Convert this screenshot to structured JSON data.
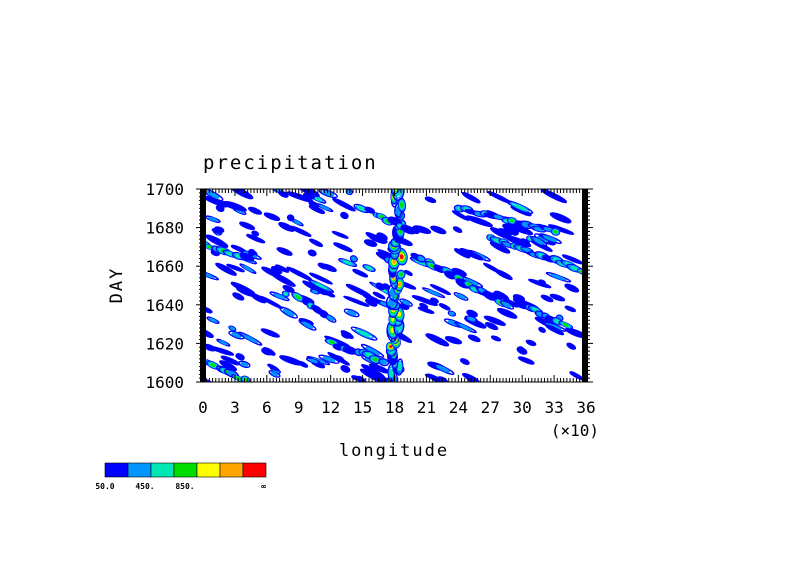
{
  "chart_data": {
    "type": "heatmap",
    "title": "precipitation",
    "xlabel": "longitude",
    "ylabel": "DAY",
    "x_multiplier_label": "(×10)",
    "xlim": [
      0,
      36
    ],
    "ylim": [
      1600,
      1700
    ],
    "x_ticks": [
      "0",
      "3",
      "6",
      "9",
      "12",
      "15",
      "18",
      "21",
      "24",
      "27",
      "30",
      "33",
      "36"
    ],
    "y_ticks": [
      "1600",
      "1620",
      "1640",
      "1660",
      "1680",
      "1700"
    ],
    "colorbar": {
      "colors": [
        "#0000ff",
        "#0096ff",
        "#00e6b4",
        "#00dc00",
        "#ffff00",
        "#ffa500",
        "#ff0000"
      ],
      "labels": [
        "50.0",
        "450.",
        "850.",
        "",
        "",
        "",
        "∞"
      ]
    },
    "features": [
      {
        "name": "main band",
        "x_start": 18.0,
        "y_start": 1600,
        "x_end": 18.4,
        "y_end": 1700
      },
      {
        "name": "stripe",
        "x_start": 0.0,
        "y_start": 1672,
        "x_end": 4.0,
        "y_end": 1664
      },
      {
        "name": "stripe",
        "x_start": 0.5,
        "y_start": 1610,
        "x_end": 4.0,
        "y_end": 1601
      },
      {
        "name": "stripe",
        "x_start": 9.0,
        "y_start": 1644,
        "x_end": 12.0,
        "y_end": 1633
      },
      {
        "name": "stripe",
        "x_start": 20.0,
        "y_start": 1665,
        "x_end": 28.5,
        "y_end": 1640
      },
      {
        "name": "stripe",
        "x_start": 24.0,
        "y_start": 1690,
        "x_end": 33.0,
        "y_end": 1678
      },
      {
        "name": "stripe",
        "x_start": 27.0,
        "y_start": 1675,
        "x_end": 35.5,
        "y_end": 1658
      },
      {
        "name": "stripe",
        "x_start": 15.0,
        "y_start": 1690,
        "x_end": 20.0,
        "y_end": 1678
      },
      {
        "name": "stripe",
        "x_start": 12.0,
        "y_start": 1620,
        "x_end": 17.0,
        "y_end": 1611
      },
      {
        "name": "stripe",
        "x_start": 30.0,
        "y_start": 1640,
        "x_end": 34.0,
        "y_end": 1630
      }
    ]
  }
}
